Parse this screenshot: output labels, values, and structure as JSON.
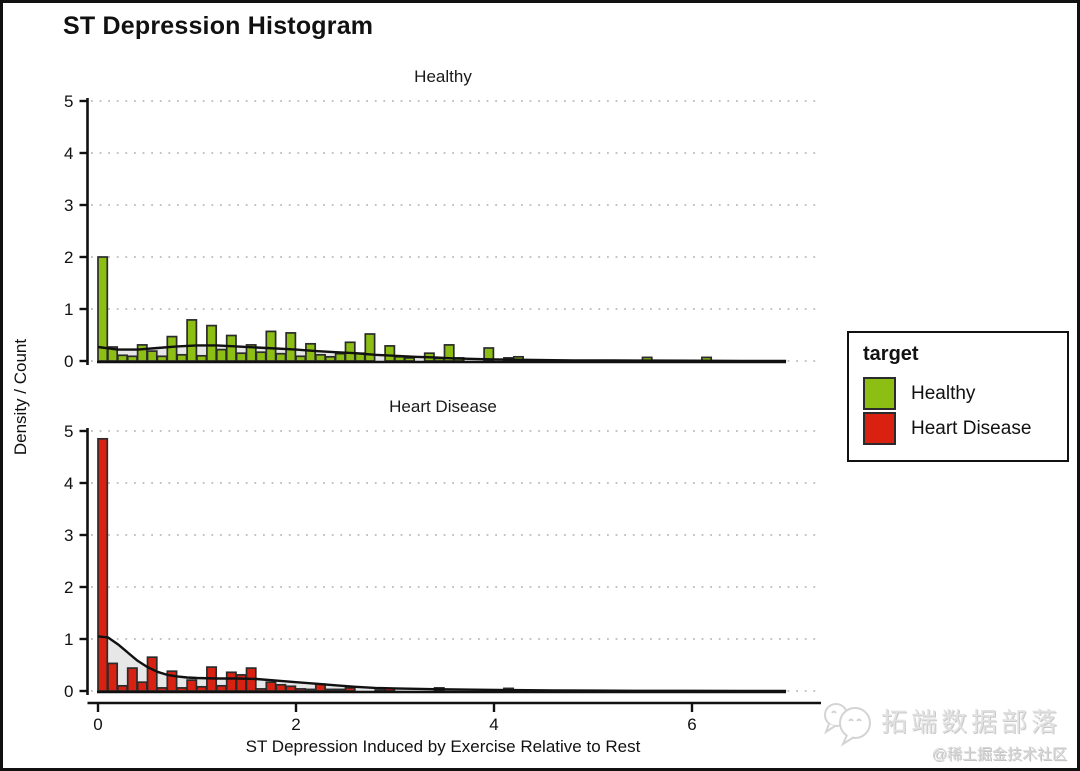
{
  "title": "ST Depression Histogram",
  "legend": {
    "title": "target",
    "items": [
      {
        "label": "Healthy",
        "color": "#8cbe14"
      },
      {
        "label": "Heart Disease",
        "color": "#d92112"
      }
    ]
  },
  "watermark": {
    "brand": "拓端数据部落",
    "community": "@稀土掘金技术社区",
    "logo": "wechat-bubbles-icon"
  },
  "colors": {
    "bar_outline": "#2b2b2b",
    "density_fill": "#e7e7e7",
    "density_line": "#111111",
    "gridline": "#c3c3c3",
    "axis": "#111111"
  },
  "chart_data": {
    "type": "bar",
    "subtype": "faceted-histogram-with-density",
    "title": "ST Depression Histogram",
    "xlabel": "ST Depression Induced by Exercise Relative to Rest",
    "ylabel": "Density / Count",
    "bin_width": 0.1,
    "x_ticks": [
      0,
      2,
      4,
      6
    ],
    "y_ticks": [
      0,
      1,
      2,
      3,
      4,
      5
    ],
    "xlim": [
      -0.12,
      7.3
    ],
    "ylim": [
      0,
      5.2
    ],
    "grid": "horizontal dotted",
    "legend_position": "right",
    "facets": [
      {
        "label": "Healthy",
        "color": "#8cbe14",
        "bars": [
          [
            0.0,
            2.0
          ],
          [
            0.1,
            0.27
          ],
          [
            0.2,
            0.11
          ],
          [
            0.3,
            0.09
          ],
          [
            0.4,
            0.31
          ],
          [
            0.5,
            0.19
          ],
          [
            0.6,
            0.09
          ],
          [
            0.7,
            0.47
          ],
          [
            0.8,
            0.12
          ],
          [
            0.9,
            0.79
          ],
          [
            1.0,
            0.1
          ],
          [
            1.1,
            0.68
          ],
          [
            1.2,
            0.22
          ],
          [
            1.3,
            0.49
          ],
          [
            1.4,
            0.15
          ],
          [
            1.5,
            0.31
          ],
          [
            1.6,
            0.17
          ],
          [
            1.7,
            0.57
          ],
          [
            1.8,
            0.14
          ],
          [
            1.9,
            0.54
          ],
          [
            2.0,
            0.09
          ],
          [
            2.1,
            0.33
          ],
          [
            2.2,
            0.12
          ],
          [
            2.3,
            0.08
          ],
          [
            2.4,
            0.14
          ],
          [
            2.5,
            0.36
          ],
          [
            2.6,
            0.15
          ],
          [
            2.7,
            0.52
          ],
          [
            2.9,
            0.29
          ],
          [
            3.0,
            0.08
          ],
          [
            3.1,
            0.06
          ],
          [
            3.3,
            0.15
          ],
          [
            3.4,
            0.05
          ],
          [
            3.5,
            0.31
          ],
          [
            3.6,
            0.06
          ],
          [
            3.9,
            0.25
          ],
          [
            4.1,
            0.06
          ],
          [
            4.2,
            0.08
          ],
          [
            5.5,
            0.07
          ],
          [
            6.1,
            0.07
          ]
        ],
        "density": [
          [
            0,
            0.27
          ],
          [
            0.2,
            0.22
          ],
          [
            0.4,
            0.22
          ],
          [
            0.6,
            0.25
          ],
          [
            0.8,
            0.28
          ],
          [
            1.0,
            0.3
          ],
          [
            1.2,
            0.3
          ],
          [
            1.4,
            0.28
          ],
          [
            1.6,
            0.26
          ],
          [
            1.8,
            0.24
          ],
          [
            2.0,
            0.22
          ],
          [
            2.2,
            0.19
          ],
          [
            2.4,
            0.17
          ],
          [
            2.6,
            0.15
          ],
          [
            2.8,
            0.12
          ],
          [
            3.0,
            0.1
          ],
          [
            3.2,
            0.08
          ],
          [
            3.4,
            0.07
          ],
          [
            3.6,
            0.05
          ],
          [
            3.8,
            0.04
          ],
          [
            4.0,
            0.03
          ],
          [
            4.4,
            0.02
          ],
          [
            4.8,
            0.012
          ],
          [
            5.2,
            0.01
          ],
          [
            5.6,
            0.008
          ],
          [
            6.0,
            0.005
          ],
          [
            6.5,
            0.002
          ],
          [
            6.95,
            0.001
          ]
        ]
      },
      {
        "label": "Heart Disease",
        "color": "#d92112",
        "bars": [
          [
            0.0,
            4.85
          ],
          [
            0.1,
            0.53
          ],
          [
            0.2,
            0.1
          ],
          [
            0.3,
            0.44
          ],
          [
            0.4,
            0.17
          ],
          [
            0.5,
            0.65
          ],
          [
            0.6,
            0.06
          ],
          [
            0.7,
            0.38
          ],
          [
            0.8,
            0.06
          ],
          [
            0.9,
            0.21
          ],
          [
            1.0,
            0.08
          ],
          [
            1.1,
            0.46
          ],
          [
            1.2,
            0.1
          ],
          [
            1.3,
            0.36
          ],
          [
            1.4,
            0.31
          ],
          [
            1.5,
            0.44
          ],
          [
            1.6,
            0.04
          ],
          [
            1.7,
            0.17
          ],
          [
            1.8,
            0.12
          ],
          [
            1.9,
            0.09
          ],
          [
            2.0,
            0.04
          ],
          [
            2.1,
            0.03
          ],
          [
            2.2,
            0.13
          ],
          [
            2.3,
            0.03
          ],
          [
            2.4,
            0.03
          ],
          [
            2.5,
            0.06
          ],
          [
            2.8,
            0.02
          ],
          [
            2.9,
            0.05
          ],
          [
            3.4,
            0.06
          ],
          [
            4.1,
            0.05
          ]
        ],
        "density": [
          [
            0,
            1.05
          ],
          [
            0.1,
            1.03
          ],
          [
            0.2,
            0.9
          ],
          [
            0.3,
            0.74
          ],
          [
            0.4,
            0.58
          ],
          [
            0.5,
            0.46
          ],
          [
            0.6,
            0.37
          ],
          [
            0.7,
            0.31
          ],
          [
            0.8,
            0.28
          ],
          [
            0.9,
            0.26
          ],
          [
            1.0,
            0.25
          ],
          [
            1.2,
            0.24
          ],
          [
            1.4,
            0.24
          ],
          [
            1.6,
            0.23
          ],
          [
            1.8,
            0.2
          ],
          [
            2.0,
            0.17
          ],
          [
            2.2,
            0.14
          ],
          [
            2.4,
            0.11
          ],
          [
            2.6,
            0.08
          ],
          [
            2.8,
            0.06
          ],
          [
            3.0,
            0.05
          ],
          [
            3.4,
            0.035
          ],
          [
            3.8,
            0.025
          ],
          [
            4.2,
            0.018
          ],
          [
            4.6,
            0.012
          ],
          [
            5.0,
            0.008
          ],
          [
            5.5,
            0.004
          ],
          [
            6.0,
            0.003
          ],
          [
            6.5,
            0.002
          ],
          [
            6.95,
            0.001
          ]
        ]
      }
    ]
  }
}
